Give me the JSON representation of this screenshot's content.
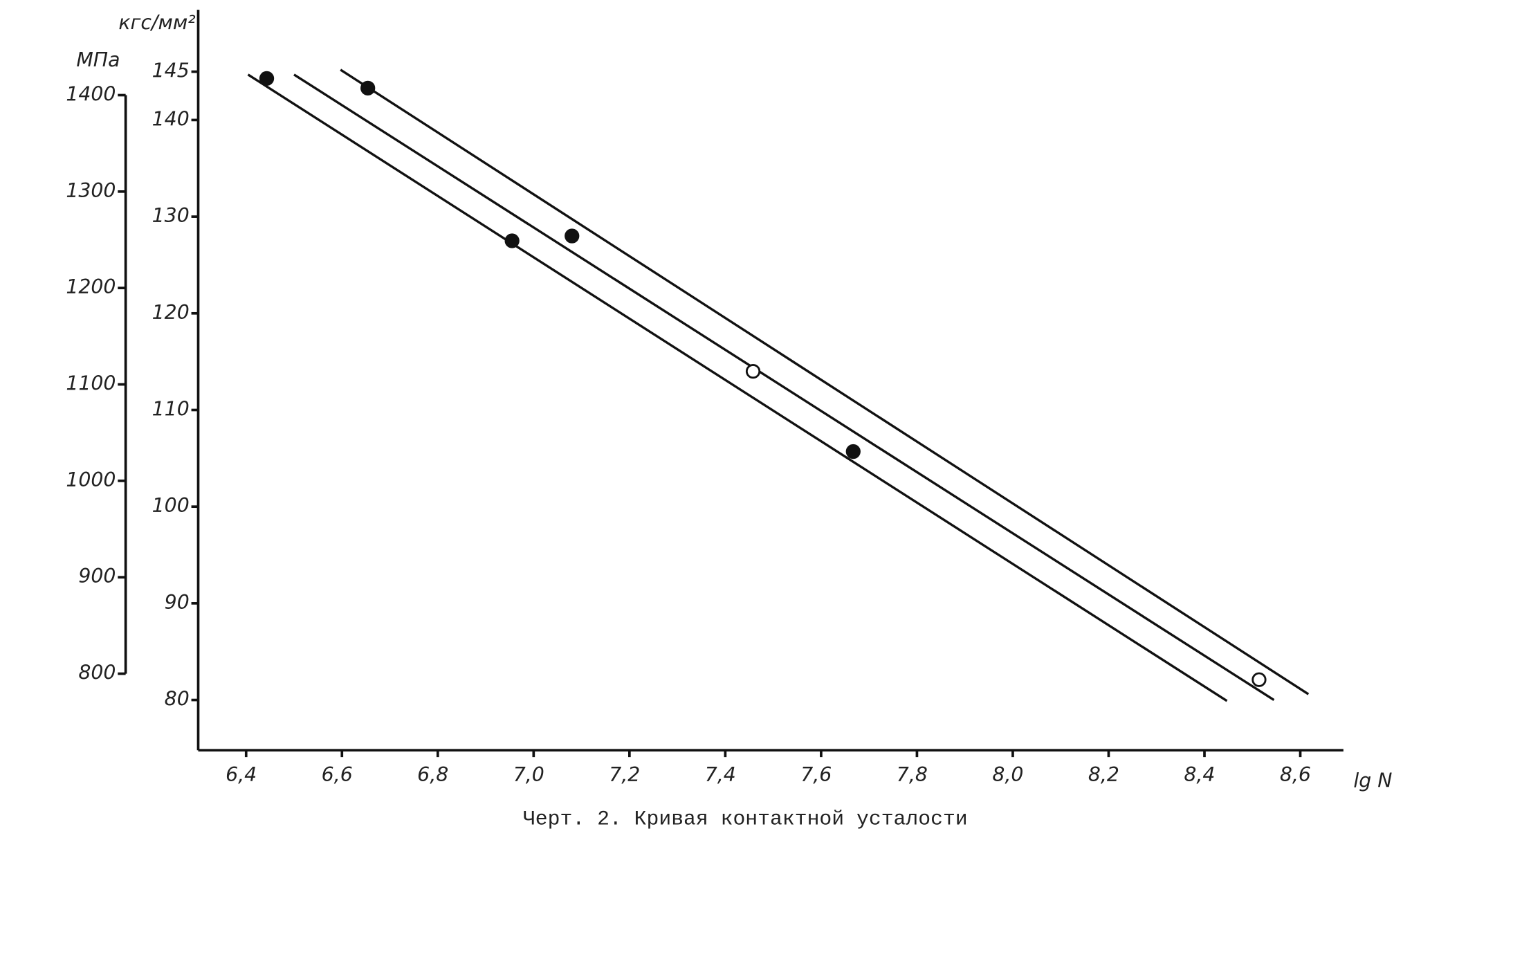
{
  "chart_data": {
    "type": "scatter",
    "caption": "Черт. 2. Кривая контактной усталости",
    "y_label": "кгс/мм²",
    "y2_label": "МПа",
    "x_label": "lg N",
    "xlim": [
      6.3,
      8.69
    ],
    "xticks": [
      {
        "value": 6.4,
        "label": "6,4"
      },
      {
        "value": 6.6,
        "label": "6,6"
      },
      {
        "value": 6.8,
        "label": "6,8"
      },
      {
        "value": 7.0,
        "label": "7,0"
      },
      {
        "value": 7.2,
        "label": "7,2"
      },
      {
        "value": 7.4,
        "label": "7,4"
      },
      {
        "value": 7.6,
        "label": "7,6"
      },
      {
        "value": 7.8,
        "label": "7,8"
      },
      {
        "value": 8.0,
        "label": "8,0"
      },
      {
        "value": 8.2,
        "label": "8,2"
      },
      {
        "value": 8.4,
        "label": "8,4"
      },
      {
        "value": 8.6,
        "label": "8,6"
      }
    ],
    "ylim": [
      74.8,
      151.4
    ],
    "yticks": [
      80,
      90,
      100,
      110,
      120,
      130,
      140,
      145
    ],
    "y2lim": [
      720.6,
      1488.5
    ],
    "y2ticks": [
      800,
      900,
      1000,
      1100,
      1200,
      1300,
      1400
    ],
    "color": "#111111",
    "series": [
      {
        "color": "#111111",
        "x": [
          6.443,
          6.654,
          6.955,
          7.08,
          7.458,
          7.667,
          8.514
        ],
        "values": [
          144.3,
          143.3,
          127.5,
          128.0,
          114.0,
          105.7,
          82.1
        ],
        "marker_fill": [
          "#111111",
          "#111111",
          "#111111",
          "#111111",
          "#ffffff",
          "#111111",
          "#ffffff"
        ]
      }
    ],
    "lines": [
      {
        "x": [
          6.404,
          8.447
        ],
        "values": [
          144.7,
          79.9
        ]
      },
      {
        "x": [
          6.5,
          8.545
        ],
        "values": [
          144.7,
          80.0
        ]
      },
      {
        "x": [
          6.597,
          8.617
        ],
        "values": [
          145.2,
          80.6
        ]
      }
    ]
  }
}
